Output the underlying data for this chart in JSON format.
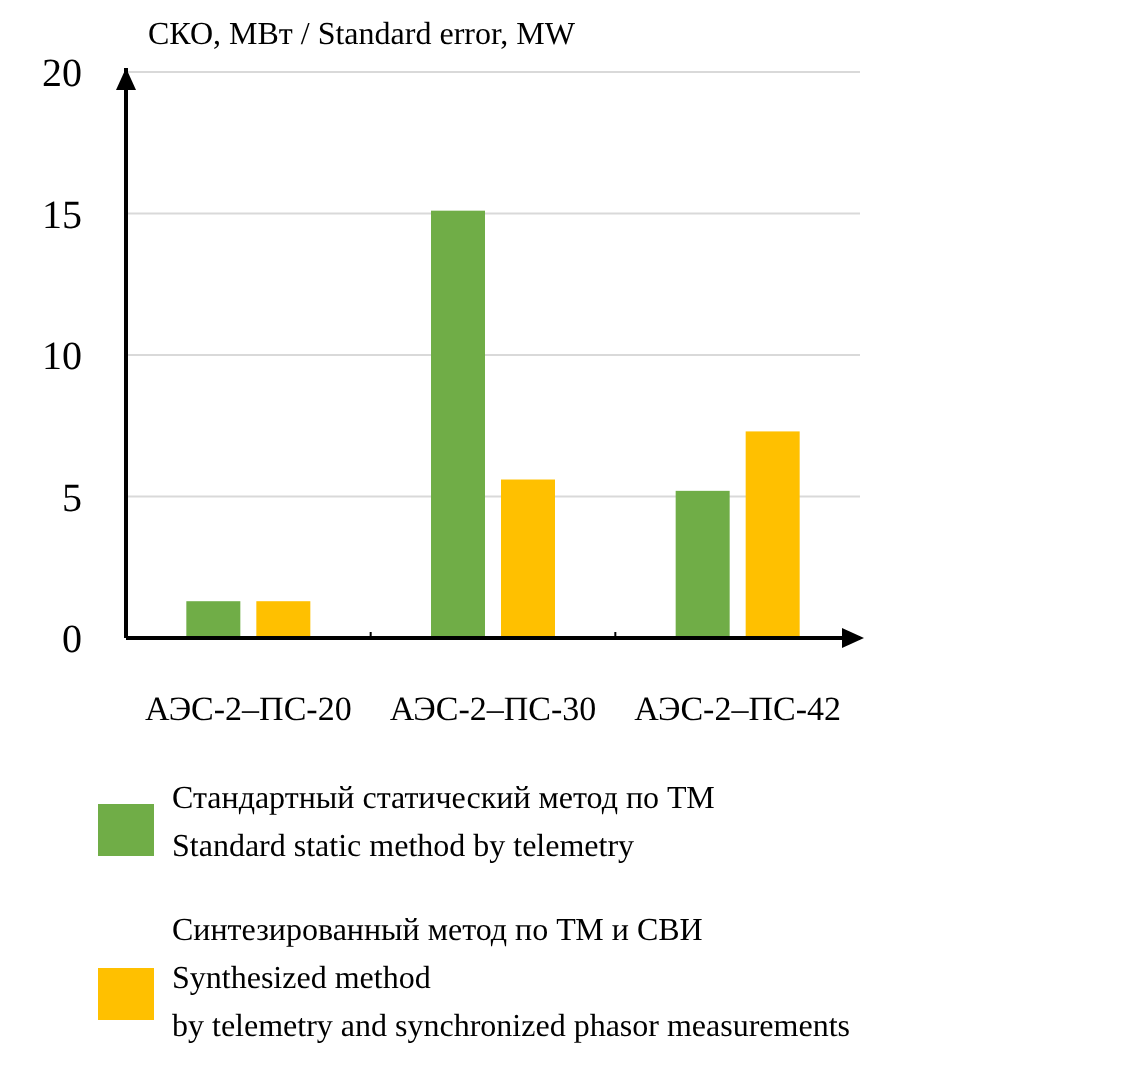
{
  "chart_data": {
    "type": "bar",
    "ylabel": "СКО, МВт / Standard error, MW",
    "categories": [
      "АЭС-2–ПС-20",
      "АЭС-2–ПС-30",
      "АЭС-2–ПС-42"
    ],
    "series": [
      {
        "name": "Стандартный статический метод по ТМ\nStandard static method by telemetry",
        "color": "#70ad47",
        "values": [
          1.3,
          15.1,
          5.2
        ]
      },
      {
        "name": "Синтезированный метод по ТМ и СВИ\nSynthesized method\nby telemetry and synchronized phasor measurements",
        "color": "#ffc000",
        "values": [
          1.3,
          5.6,
          7.3
        ]
      }
    ],
    "ylim": [
      0,
      20
    ],
    "yticks": [
      0,
      5,
      10,
      15,
      20
    ],
    "grid": "y",
    "legend": "bottom"
  }
}
